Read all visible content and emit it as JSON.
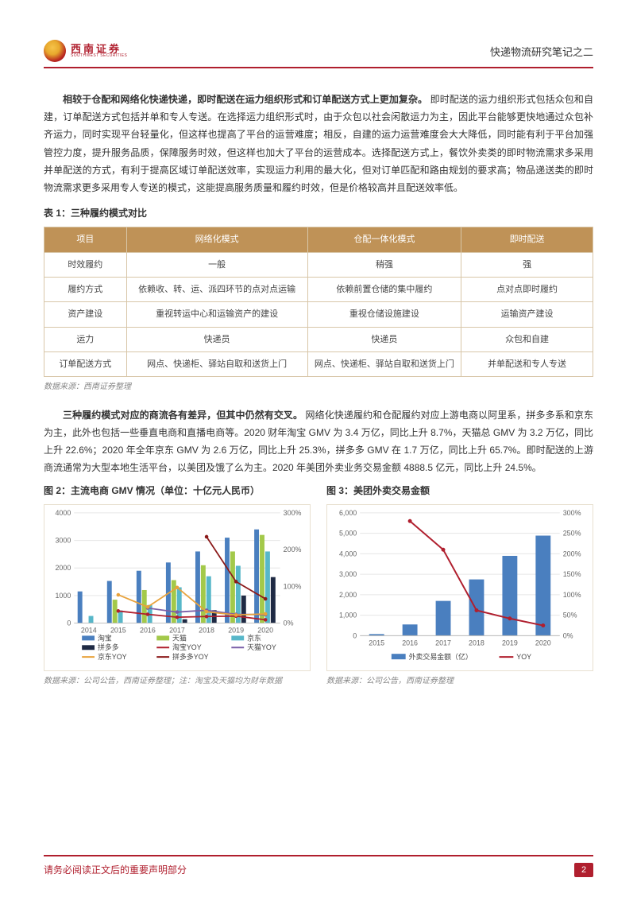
{
  "header": {
    "logo_cn": "西南证券",
    "logo_en": "SOUTHWEST SECURITIES",
    "title_right": "快递物流研究笔记之二"
  },
  "paragraph1": {
    "lead": "相较于仓配和网络化快递快递，即时配送在运力组织形式和订单配送方式上更加复杂。",
    "body": "即时配送的运力组织形式包括众包和自建，订单配送方式包括并单和专人专送。在选择运力组织形式时，由于众包以社会闲散运力为主，因此平台能够更快地通过众包补齐运力，同时实现平台轻量化，但这样也提高了平台的运营难度；相反，自建的运力运营难度会大大降低，同时能有利于平台加强管控力度，提升服务品质，保障服务时效，但这样也加大了平台的运营成本。选择配送方式上，餐饮外卖类的即时物流需求多采用并单配送的方式，有利于提高区域订单配送效率，实现运力利用的最大化，但对订单匹配和路由规划的要求高；物品递送类的即时物流需求更多采用专人专送的模式，这能提高服务质量和履约时效，但是价格较高并且配送效率低。"
  },
  "table1": {
    "title": "表 1：三种履约模式对比",
    "headers": [
      "项目",
      "网络化模式",
      "仓配一体化模式",
      "即时配送"
    ],
    "col_widths": [
      "15%",
      "33%",
      "28%",
      "24%"
    ],
    "rows": [
      [
        "时效履约",
        "一般",
        "稍强",
        "强"
      ],
      [
        "履约方式",
        "依赖收、转、运、派四环节的点对点运输",
        "依赖前置仓储的集中履约",
        "点对点即时履约"
      ],
      [
        "资产建设",
        "重视转运中心和运输资产的建设",
        "重视仓储设施建设",
        "运输资产建设"
      ],
      [
        "运力",
        "快递员",
        "快递员",
        "众包和自建"
      ],
      [
        "订单配送方式",
        "网点、快递柜、驿站自取和送货上门",
        "网点、快递柜、驿站自取和送货上门",
        "并单配送和专人专送"
      ]
    ],
    "source": "数据来源：西南证券整理",
    "header_bg": "#bf9257",
    "header_text": "#ffffff",
    "border_color": "#d8c6a8"
  },
  "paragraph2": {
    "lead": "三种履约模式对应的商流各有差异，但其中仍然有交叉。",
    "body": "网络化快递履约和仓配履约对应上游电商以阿里系，拼多多系和京东为主，此外也包括一些垂直电商和直播电商等。2020 财年淘宝 GMV 为 3.4 万亿，同比上升 8.7%，天猫总 GMV 为 3.2 万亿，同比上升 22.6%；2020 年全年京东 GMV 为 2.6 万亿，同比上升 25.3%，拼多多 GMV 在 1.7 万亿，同比上升 65.7%。即时配送的上游商流通常为大型本地生活平台，以美团及饿了么为主。2020 年美团外卖业务交易金额 4888.5 亿元，同比上升 24.5%。"
  },
  "chart2": {
    "title": "图 2：主流电商 GMV 情况（单位：十亿元人民币）",
    "type": "grouped-bar-with-lines",
    "years": [
      "2014",
      "2015",
      "2016",
      "2017",
      "2018",
      "2019",
      "2020"
    ],
    "left_axis": {
      "min": 0,
      "max": 4000,
      "ticks": [
        0,
        1000,
        2000,
        3000,
        4000
      ]
    },
    "right_axis": {
      "suffix": "%",
      "min": 0,
      "max": 300,
      "ticks": [
        0,
        100,
        200,
        300
      ]
    },
    "bars": {
      "taobao": {
        "label": "淘宝",
        "color": "#4a7fbf",
        "values": [
          1150,
          1530,
          1900,
          2200,
          2600,
          3100,
          3400
        ]
      },
      "tmall": {
        "label": "天猫",
        "color": "#a3c94a",
        "values": [
          0,
          850,
          1200,
          1560,
          2100,
          2600,
          3200
        ]
      },
      "jd": {
        "label": "京东",
        "color": "#57b7c9",
        "values": [
          260,
          460,
          660,
          1300,
          1700,
          2080,
          2600
        ]
      },
      "pdd": {
        "label": "拼多多",
        "color": "#1f2a44",
        "values": [
          0,
          0,
          0,
          140,
          470,
          1000,
          1670
        ]
      }
    },
    "lines": {
      "taobao_yoy": {
        "label": "淘宝YOY",
        "color": "#b01f2e",
        "values": [
          null,
          33,
          24,
          16,
          18,
          19,
          9
        ]
      },
      "tmall_yoy": {
        "label": "天猫YOY",
        "color": "#7a5fa8",
        "values": [
          null,
          null,
          41,
          30,
          35,
          24,
          23
        ]
      },
      "jd_yoy": {
        "label": "京东YOY",
        "color": "#e8a23b",
        "values": [
          null,
          77,
          44,
          97,
          31,
          22,
          25
        ]
      },
      "pdd_yoy": {
        "label": "拼多多YOY",
        "color": "#8b1a1a",
        "values": [
          null,
          null,
          null,
          null,
          235,
          113,
          66
        ]
      }
    },
    "legend_items": [
      {
        "kind": "bar",
        "key": "taobao",
        "label": "淘宝",
        "color": "#4a7fbf"
      },
      {
        "kind": "bar",
        "key": "tmall",
        "label": "天猫",
        "color": "#a3c94a"
      },
      {
        "kind": "bar",
        "key": "jd",
        "label": "京东",
        "color": "#57b7c9"
      },
      {
        "kind": "bar",
        "key": "pdd",
        "label": "拼多多",
        "color": "#1f2a44"
      },
      {
        "kind": "line",
        "key": "taobao_yoy",
        "label": "淘宝YOY",
        "color": "#b01f2e"
      },
      {
        "kind": "line",
        "key": "tmall_yoy",
        "label": "天猫YOY",
        "color": "#7a5fa8"
      },
      {
        "kind": "line",
        "key": "jd_yoy",
        "label": "京东YOY",
        "color": "#e8a23b"
      },
      {
        "kind": "line",
        "key": "pdd_yoy",
        "label": "拼多多YOY",
        "color": "#8b1a1a"
      }
    ],
    "grid_color": "#e6e6e6",
    "source": "数据来源：公司公告，西南证券整理；注：淘宝及天猫均为财年数据"
  },
  "chart3": {
    "title": "图 3：美团外卖交易金额",
    "type": "bar-with-line",
    "years": [
      "2015",
      "2016",
      "2017",
      "2018",
      "2019",
      "2020"
    ],
    "left_axis": {
      "min": 0,
      "max": 6000,
      "ticks": [
        0,
        1000,
        2000,
        3000,
        4000,
        5000,
        6000
      ]
    },
    "right_axis": {
      "suffix": "%",
      "min": 0,
      "max": 300,
      "ticks": [
        0,
        50,
        100,
        150,
        200,
        250,
        300
      ]
    },
    "bar": {
      "label": "外卖交易金额（亿）",
      "color": "#4a7fbf",
      "values": [
        80,
        550,
        1700,
        2750,
        3900,
        4889
      ]
    },
    "line": {
      "label": "YOY",
      "color": "#b01f2e",
      "values": [
        null,
        280,
        210,
        62,
        42,
        25
      ]
    },
    "legend_items": [
      {
        "kind": "bar",
        "label": "外卖交易金额（亿）",
        "color": "#4a7fbf"
      },
      {
        "kind": "line",
        "label": "YOY",
        "color": "#b01f2e"
      }
    ],
    "grid_color": "#e6e6e6",
    "source": "数据来源：公司公告，西南证券整理"
  },
  "footer": {
    "disclaimer": "请务必阅读正文后的重要声明部分",
    "page": "2"
  }
}
